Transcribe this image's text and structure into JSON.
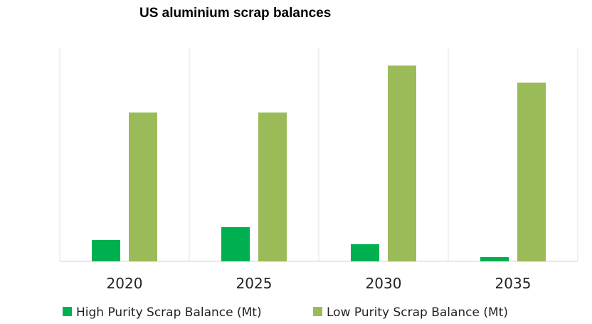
{
  "chart_data": {
    "type": "bar",
    "title": "US aluminium scrap balances",
    "xlabel": "",
    "ylabel": "",
    "categories": [
      "2020",
      "2025",
      "2030",
      "2035"
    ],
    "series": [
      {
        "name": "High Purity Scrap Balance (Mt)",
        "color": "#00b050",
        "values": [
          0.3,
          0.48,
          0.24,
          0.06
        ]
      },
      {
        "name": "Low Purity Scrap Balance (Mt)",
        "color": "#9bbb59",
        "values": [
          2.09,
          2.09,
          2.75,
          2.51
        ]
      }
    ],
    "ylim": [
      0,
      3
    ],
    "grid": "vertical category separators",
    "legend": "bottom"
  }
}
